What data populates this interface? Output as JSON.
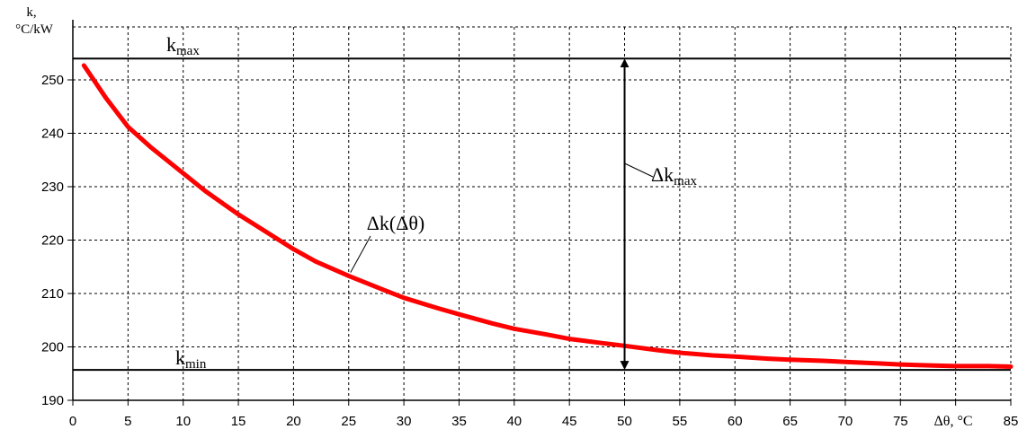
{
  "chart_data": {
    "type": "line",
    "ylabel_line1": "k,",
    "ylabel_line2": "°C/kW",
    "xlabel": "Δθ, °C",
    "xlim": [
      0,
      85
    ],
    "ylim": [
      190,
      255
    ],
    "grid": true,
    "x_ticks": [
      0,
      5,
      10,
      15,
      20,
      25,
      30,
      35,
      40,
      45,
      50,
      55,
      60,
      65,
      70,
      75,
      80,
      85
    ],
    "y_ticks": [
      190,
      200,
      210,
      220,
      230,
      240,
      250
    ],
    "series": [
      {
        "name": "Δk(Δθ)",
        "color": "#ff0000",
        "x": [
          1,
          3,
          5,
          7,
          10,
          12,
          15,
          18,
          20,
          22,
          25,
          28,
          30,
          33,
          35,
          38,
          40,
          43,
          45,
          48,
          50,
          53,
          55,
          58,
          60,
          63,
          65,
          68,
          70,
          73,
          75,
          78,
          80,
          83,
          85
        ],
        "y": [
          252.7,
          246.6,
          241.2,
          237.5,
          232.5,
          229.2,
          224.8,
          220.9,
          218.3,
          216.0,
          213.3,
          210.8,
          209.2,
          207.3,
          206.1,
          204.4,
          203.4,
          202.3,
          201.5,
          200.7,
          200.2,
          199.4,
          198.9,
          198.4,
          198.2,
          197.8,
          197.6,
          197.4,
          197.2,
          196.9,
          196.7,
          196.5,
          196.4,
          196.4,
          196.3
        ]
      }
    ],
    "reference_lines": [
      {
        "label_main": "k",
        "label_sub": "max",
        "y": 254
      },
      {
        "label_main": "k",
        "label_sub": "min",
        "y": 195.7
      }
    ],
    "annotations": {
      "curve_label": "Δk(Δθ)",
      "range_arrow": {
        "x": 50,
        "from": 195.7,
        "to": 254,
        "label_main": "Δk",
        "label_sub": "max"
      }
    }
  }
}
